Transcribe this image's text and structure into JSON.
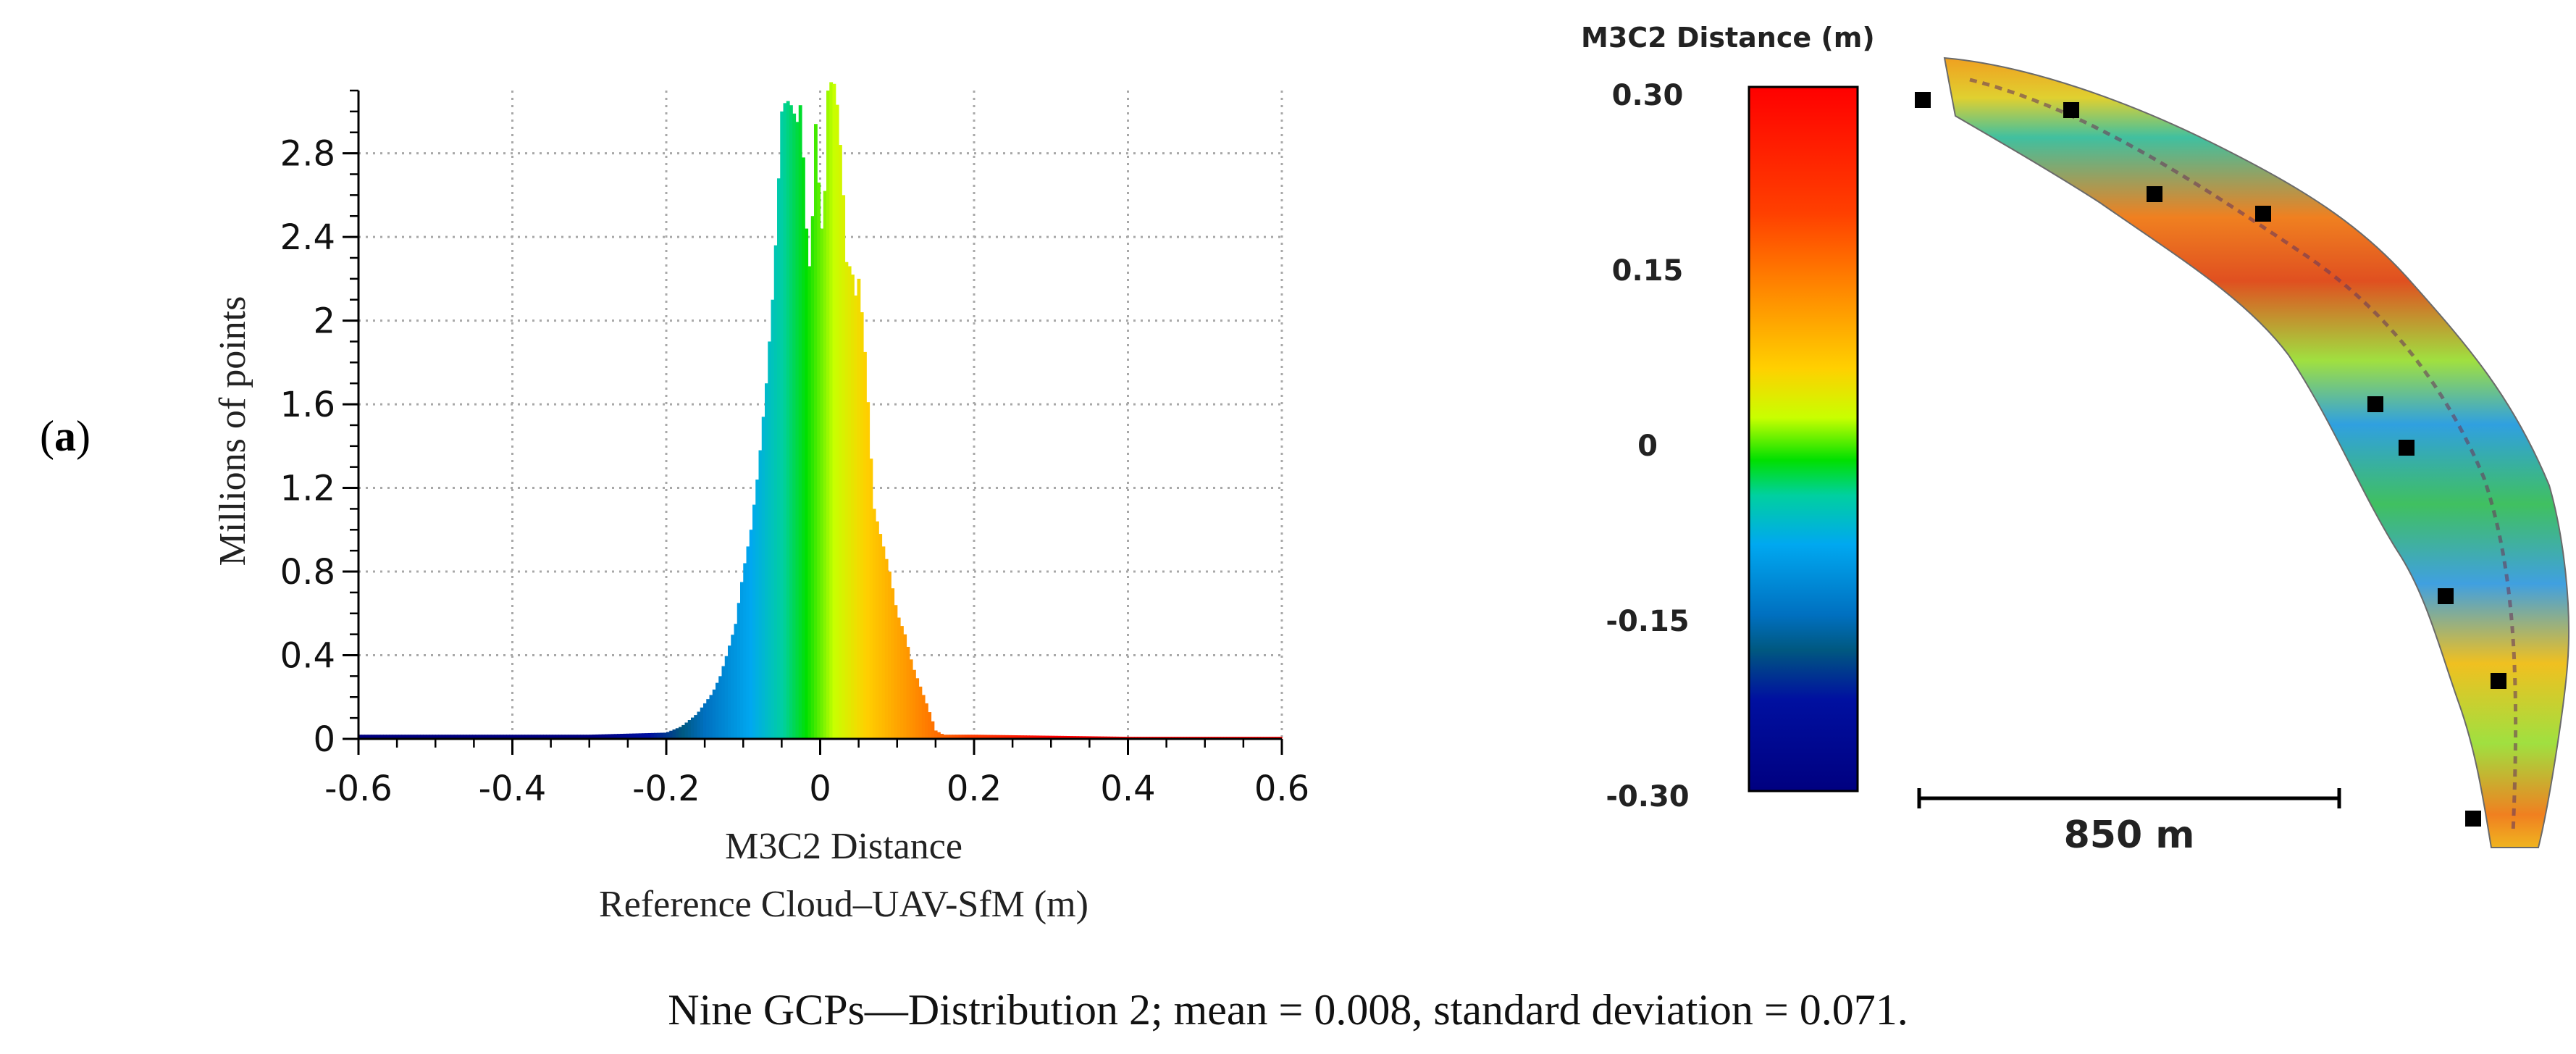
{
  "panel_label": {
    "open": "(",
    "letter": "a",
    "close": ")"
  },
  "caption": "Nine GCPs—Distribution 2; mean = 0.008, standard deviation = 0.071.",
  "chart_data": [
    {
      "type": "bar",
      "subtype": "histogram",
      "title": "",
      "xlabel_line1": "M3C2 Distance",
      "xlabel_line2": "Reference Cloud–UAV-SfM (m)",
      "ylabel": "Millions of points",
      "xlim": [
        -0.6,
        0.6
      ],
      "ylim": [
        0,
        3.1
      ],
      "xticks": [
        "-0.6",
        "-0.4",
        "-0.2",
        "0",
        "0.2",
        "0.4",
        "0.6"
      ],
      "yticks": [
        "0",
        "0.4",
        "0.8",
        "1.2",
        "1.6",
        "2",
        "2.4",
        "2.8"
      ],
      "grid": true,
      "color_scale_range": [
        -0.3,
        0.3
      ],
      "series": [
        {
          "name": "M3C2 Distance",
          "x": [
            -0.6,
            -0.5,
            -0.4,
            -0.3,
            -0.25,
            -0.2,
            -0.18,
            -0.16,
            -0.14,
            -0.13,
            -0.12,
            -0.11,
            -0.1,
            -0.09,
            -0.08,
            -0.07,
            -0.06,
            -0.05,
            -0.045,
            -0.04,
            -0.035,
            -0.03,
            -0.025,
            -0.02,
            -0.015,
            -0.01,
            -0.005,
            0.0,
            0.005,
            0.01,
            0.015,
            0.02,
            0.025,
            0.03,
            0.035,
            0.04,
            0.045,
            0.05,
            0.055,
            0.06,
            0.065,
            0.07,
            0.08,
            0.09,
            0.1,
            0.11,
            0.12,
            0.13,
            0.14,
            0.15,
            0.16,
            0.2,
            0.3,
            0.4,
            0.5,
            0.6
          ],
          "values": [
            0.02,
            0.02,
            0.02,
            0.02,
            0.025,
            0.03,
            0.06,
            0.12,
            0.22,
            0.3,
            0.42,
            0.55,
            0.8,
            1.0,
            1.3,
            1.7,
            2.2,
            3.0,
            3.05,
            3.05,
            3.0,
            2.95,
            3.05,
            2.6,
            2.2,
            2.5,
            3.05,
            2.4,
            2.5,
            3.1,
            3.15,
            3.12,
            2.9,
            2.6,
            2.2,
            2.3,
            2.1,
            2.2,
            2.0,
            1.75,
            1.4,
            1.1,
            0.95,
            0.8,
            0.6,
            0.5,
            0.35,
            0.25,
            0.15,
            0.04,
            0.02,
            0.02,
            0.015,
            0.01,
            0.01,
            0.01
          ]
        }
      ]
    },
    {
      "type": "heatmap",
      "subtype": "spatial_map",
      "colorbar_title": "M3C2 Distance (m)",
      "colorbar_ticks": [
        "0.30",
        "0.15",
        "0",
        "-0.15",
        "-0.30"
      ],
      "colorbar_range": [
        -0.3,
        0.3
      ],
      "scale_bar_label": "850 m",
      "gcp_count": 9
    }
  ],
  "colors": {
    "axis": "#000000",
    "grid": "#a8a8a8",
    "gcp_marker": "#000000"
  }
}
